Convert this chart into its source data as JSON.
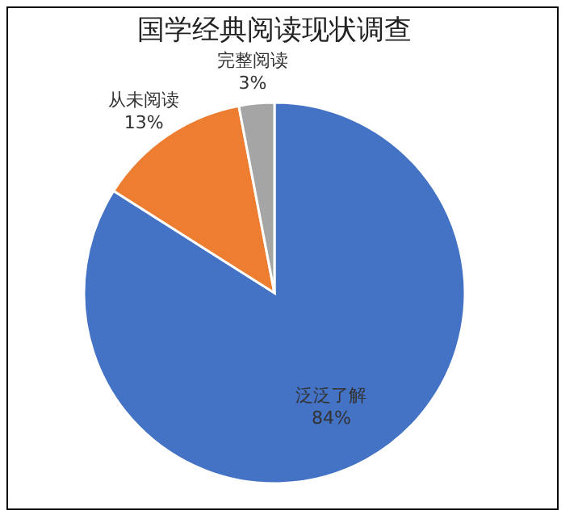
{
  "chart_data": {
    "type": "pie",
    "title": "国学经典阅读现状调查",
    "categories": [
      "泛泛了解",
      "从未阅读",
      "完整阅读"
    ],
    "values": [
      84,
      13,
      3
    ],
    "colors": [
      "#4472c4",
      "#ed7d31",
      "#a5a5a5"
    ],
    "value_labels": [
      "84%",
      "13%",
      "3%"
    ],
    "legend": false
  }
}
